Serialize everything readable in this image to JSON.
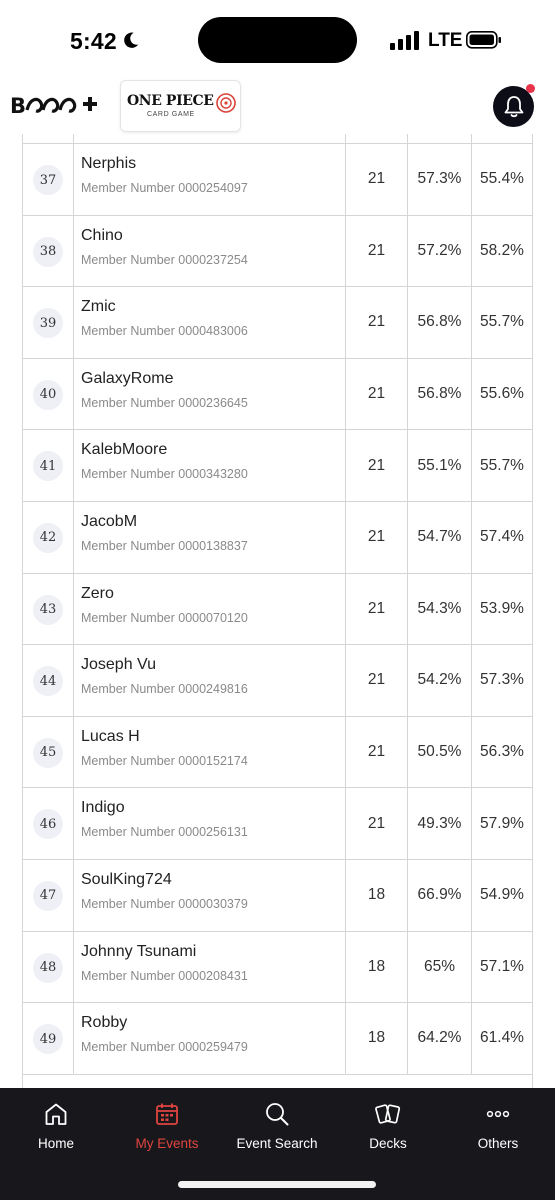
{
  "status_bar": {
    "time": "5:42",
    "network": "LTE"
  },
  "header": {
    "brand_logo": "BCG+",
    "game_logo_title": "ONE PIECE",
    "game_logo_subtitle": "CARD GAME",
    "notification_icon": "bell-icon",
    "has_unread": true
  },
  "standings": {
    "member_prefix": "Member Number",
    "rows": [
      {
        "rank": "37",
        "name": "Nerphis",
        "member": "Member Number 0000254097",
        "points": "21",
        "pct1": "57.3%",
        "pct2": "55.4%"
      },
      {
        "rank": "38",
        "name": "Chino",
        "member": "Member Number 0000237254",
        "points": "21",
        "pct1": "57.2%",
        "pct2": "58.2%"
      },
      {
        "rank": "39",
        "name": "Zmic",
        "member": "Member Number 0000483006",
        "points": "21",
        "pct1": "56.8%",
        "pct2": "55.7%"
      },
      {
        "rank": "40",
        "name": "GalaxyRome",
        "member": "Member Number 0000236645",
        "points": "21",
        "pct1": "56.8%",
        "pct2": "55.6%"
      },
      {
        "rank": "41",
        "name": "KalebMoore",
        "member": "Member Number 0000343280",
        "points": "21",
        "pct1": "55.1%",
        "pct2": "55.7%"
      },
      {
        "rank": "42",
        "name": "JacobM",
        "member": "Member Number 0000138837",
        "points": "21",
        "pct1": "54.7%",
        "pct2": "57.4%"
      },
      {
        "rank": "43",
        "name": "Zero",
        "member": "Member Number 0000070120",
        "points": "21",
        "pct1": "54.3%",
        "pct2": "53.9%"
      },
      {
        "rank": "44",
        "name": "Joseph Vu",
        "member": "Member Number 0000249816",
        "points": "21",
        "pct1": "54.2%",
        "pct2": "57.3%"
      },
      {
        "rank": "45",
        "name": "Lucas H",
        "member": "Member Number 0000152174",
        "points": "21",
        "pct1": "50.5%",
        "pct2": "56.3%"
      },
      {
        "rank": "46",
        "name": "Indigo",
        "member": "Member Number 0000256131",
        "points": "21",
        "pct1": "49.3%",
        "pct2": "57.9%"
      },
      {
        "rank": "47",
        "name": "SoulKing724",
        "member": "Member Number 0000030379",
        "points": "18",
        "pct1": "66.9%",
        "pct2": "54.9%"
      },
      {
        "rank": "48",
        "name": "Johnny Tsunami",
        "member": "Member Number 0000208431",
        "points": "18",
        "pct1": "65%",
        "pct2": "57.1%"
      },
      {
        "rank": "49",
        "name": "Robby",
        "member": "Member Number 0000259479",
        "points": "18",
        "pct1": "64.2%",
        "pct2": "61.4%"
      }
    ]
  },
  "bottom_nav": {
    "active": "my-events",
    "items": [
      {
        "id": "home",
        "label": "Home",
        "icon": "home-icon"
      },
      {
        "id": "my-events",
        "label": "My Events",
        "icon": "calendar-icon"
      },
      {
        "id": "event-search",
        "label": "Event Search",
        "icon": "search-icon"
      },
      {
        "id": "decks",
        "label": "Decks",
        "icon": "cards-icon"
      },
      {
        "id": "others",
        "label": "Others",
        "icon": "more-icon"
      }
    ]
  },
  "colors": {
    "nav_background": "#18181c",
    "active_accent": "#e0443f",
    "rank_badge": "#eef0f6",
    "notification_dot": "#e8334a"
  }
}
